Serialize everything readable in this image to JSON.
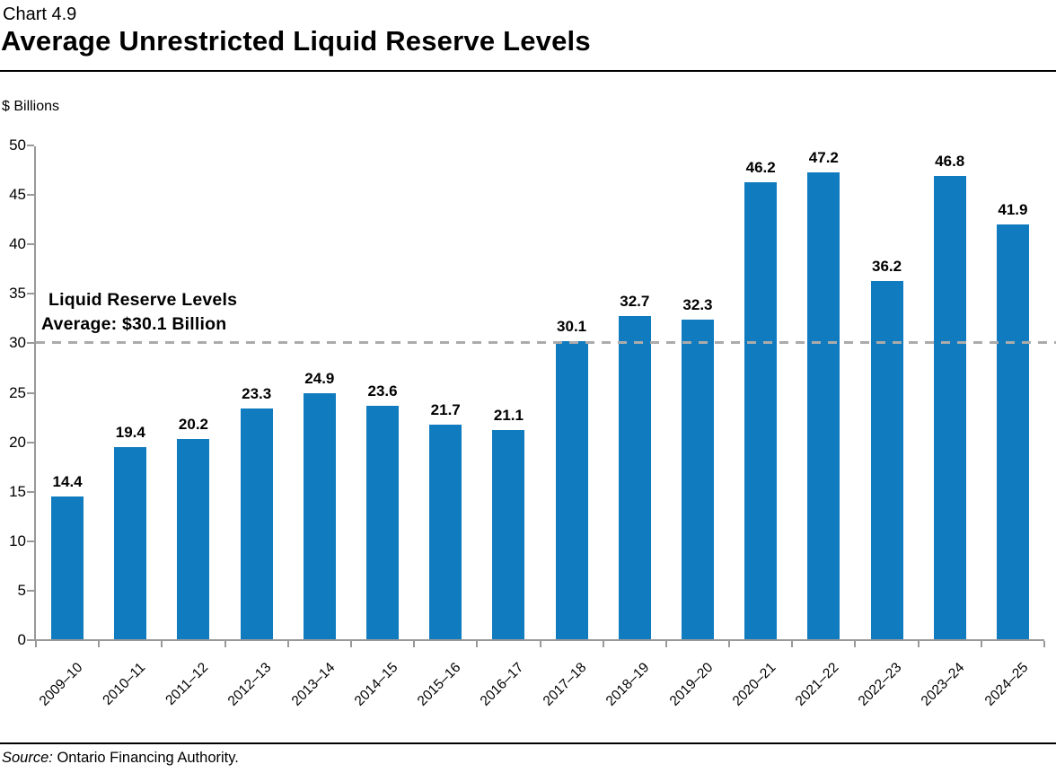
{
  "header": {
    "chart_number": "Chart 4.9",
    "title": "Average Unrestricted Liquid Reserve Levels"
  },
  "y_axis_unit": "$ Billions",
  "chart_data": {
    "type": "bar",
    "title": "Average Unrestricted Liquid Reserve Levels",
    "xlabel": "",
    "ylabel": "$ Billions",
    "ylim": [
      0,
      50
    ],
    "yticks": [
      0,
      5,
      10,
      15,
      20,
      25,
      30,
      35,
      40,
      45,
      50
    ],
    "grid": false,
    "legend": false,
    "bar_color": "#107CBF",
    "axis_color": "#999999",
    "categories": [
      "2009–10",
      "2010–11",
      "2011–12",
      "2012–13",
      "2013–14",
      "2014–15",
      "2015–16",
      "2016–17",
      "2017–18",
      "2018–19",
      "2019–20",
      "2020–21",
      "2021–22",
      "2022–23",
      "2023–24",
      "2024–25"
    ],
    "values": [
      14.4,
      19.4,
      20.2,
      23.3,
      24.9,
      23.6,
      21.7,
      21.1,
      30.1,
      32.7,
      32.3,
      46.2,
      47.2,
      36.2,
      46.8,
      41.9
    ],
    "average_line": {
      "value": 30.1,
      "style": "dashed",
      "color": "#ABABAB",
      "label_line1": "Liquid Reserve Levels",
      "label_line2": "Average: $30.1 Billion"
    }
  },
  "footer": {
    "source_label": "Source:",
    "source_text": "Ontario Financing Authority."
  }
}
